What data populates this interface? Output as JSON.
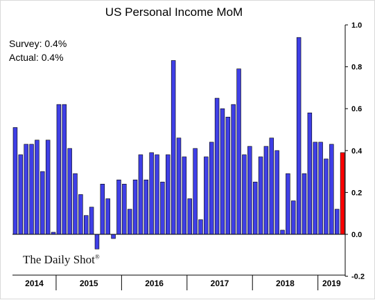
{
  "chart_data": {
    "type": "bar",
    "title": "US Personal Income MoM",
    "annotations": {
      "survey": "Survey: 0.4%",
      "actual": "Actual:  0.4%"
    },
    "source": "The Daily Shot",
    "source_mark": "®",
    "y_axis_side": "right",
    "ylim": [
      -0.2,
      1.0
    ],
    "yticks": [
      "1.0",
      "0.8",
      "0.6",
      "0.4",
      "0.2",
      "0.0",
      "-0.2"
    ],
    "x_year_labels": [
      "2014",
      "2015",
      "2016",
      "2017",
      "2018",
      "2019"
    ],
    "bar_color": "#3f3fe6",
    "highlight_color": "#ff0000",
    "highlight_last": true,
    "values": [
      0.51,
      0.38,
      0.43,
      0.43,
      0.45,
      0.3,
      0.45,
      0.01,
      0.62,
      0.62,
      0.41,
      0.29,
      0.19,
      0.09,
      0.13,
      -0.07,
      0.24,
      0.17,
      -0.02,
      0.26,
      0.24,
      0.12,
      0.26,
      0.38,
      0.26,
      0.39,
      0.38,
      0.25,
      0.38,
      0.83,
      0.46,
      0.37,
      0.17,
      0.41,
      0.07,
      0.37,
      0.44,
      0.65,
      0.6,
      0.56,
      0.62,
      0.79,
      0.38,
      0.42,
      0.25,
      0.37,
      0.42,
      0.46,
      0.4,
      0.02,
      0.29,
      0.16,
      0.94,
      0.29,
      0.58,
      0.44,
      0.44,
      0.36,
      0.43,
      0.12,
      0.39
    ]
  }
}
